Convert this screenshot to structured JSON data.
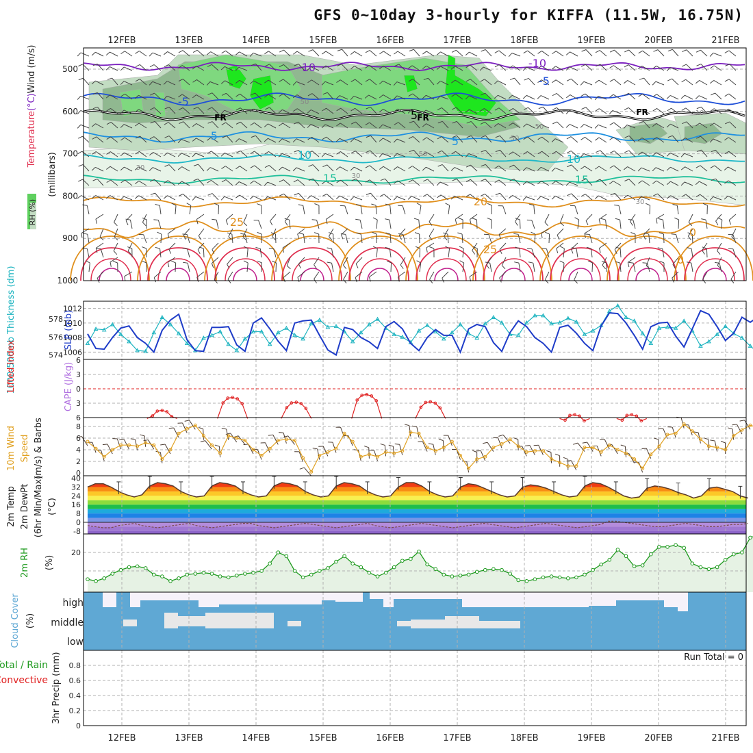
{
  "title": "GFS 0~10day 3-hourly for KIFFA (11.5W, 16.75N)",
  "colors": {
    "rh_light": "#e8f4e8",
    "rh_mid": "#c2dcc2",
    "rh_dark": "#90b890",
    "rh_green": "#7fd87f",
    "rh_bright": "#1ee61e",
    "purple": "#7b1fbf",
    "blue": "#1e4fd8",
    "skyblue": "#1e90e0",
    "cyan": "#1eb8c8",
    "teal": "#1ebf9a",
    "orange": "#e0901e",
    "red": "#e03050",
    "magenta": "#c0208c",
    "slp": "#1e3cc8",
    "thick": "#1eb4c0",
    "li": "#e02020",
    "wind": "#e0a020",
    "rhline": "#1e9a1e",
    "cloud": "#5fa8d4",
    "cloud_clear": "#f6f2fa"
  },
  "chart_data": [
    {
      "panel": "upper-air",
      "type": "heatmap",
      "x_dates": [
        "12FEB",
        "13FEB",
        "14FEB",
        "15FEB",
        "16FEB",
        "17FEB",
        "18FEB",
        "19FEB",
        "20FEB",
        "21FEB"
      ],
      "ylabel_parts": [
        "Temperature",
        "(°C)",
        "Wind",
        "(m/s)"
      ],
      "ylabel_extra": "(millibars)",
      "rh_label": "RH (%)",
      "yticks": [
        "500",
        "600",
        "700",
        "800",
        "900",
        "1000"
      ],
      "ylim": [
        1000,
        450
      ],
      "freezing_label": "FR",
      "contour_labels": [
        "-10",
        "-10",
        "-5",
        "-5",
        "-5",
        "5",
        "5",
        "10",
        "10",
        "15",
        "15",
        "20",
        "25",
        "25",
        "0",
        "0"
      ],
      "rh_labels": [
        "50",
        "50",
        "50",
        "50",
        "30",
        "30",
        "30",
        "10"
      ]
    },
    {
      "panel": "slp-thickness",
      "type": "line",
      "ylabel_left": "1000-500mb Thickness (dm)",
      "ylabel_right": "SLP (mb)",
      "thickness_ticks": [
        "578",
        "576",
        "574"
      ],
      "slp_ticks": [
        "1012",
        "1010",
        "1008",
        "1006"
      ],
      "slp_series": [
        1008.5,
        1006.5,
        1006.4,
        1008.0,
        1009.3,
        1009.6,
        1008.0,
        1007.2,
        1006.0,
        1009.0,
        1010.4,
        1011.2,
        1007.7,
        1006.2,
        1006.1,
        1009.4,
        1009.4,
        1009.5,
        1007.0,
        1006.1,
        1010.0,
        1010.7,
        1009.2,
        1007.5,
        1006.2,
        1010.0,
        1010.3,
        1010.4,
        1008.3,
        1006.3,
        1005.6,
        1009.4,
        1009.1,
        1008.0,
        1007.4,
        1006.5,
        1009.5,
        1010.2,
        1009.2,
        1007.2,
        1006.2,
        1008.0,
        1009.1,
        1008.3,
        1008.3,
        1006.0,
        1009.2,
        1009.8,
        1009.5,
        1007.3,
        1006.1,
        1008.7,
        1010.3,
        1009.5,
        1008.0,
        1007.2,
        1006.0,
        1009.4,
        1009.7,
        1008.6,
        1007.2,
        1006.2,
        1009.6,
        1011.4,
        1011.3,
        1010.0,
        1008.3,
        1006.4,
        1009.5,
        1010.0,
        1010.1,
        1008.2,
        1006.7,
        1009.2,
        1011.7,
        1011.2,
        1009.5,
        1007.6,
        1008.6,
        1010.8,
        1010.1,
        1010.9
      ],
      "thickness_series": [
        575.3,
        576.9,
        576.8,
        577.4,
        576.3,
        575.5,
        574.5,
        574.4,
        576.5,
        578.2,
        577.4,
        576.4,
        575.3,
        574.5,
        575.9,
        576.2,
        576.6,
        575.2,
        574.5,
        575.8,
        576.6,
        576.6,
        575.2,
        576.5,
        577.0,
        576.2,
        575.8,
        577.5,
        577.9,
        577.1,
        577.2,
        576.6,
        575.5,
        576.5,
        577.4,
        578.0,
        577.0,
        576.3,
        576.0,
        575.4,
        576.7,
        577.3,
        576.6,
        575.8,
        576.5,
        577.4,
        576.4,
        575.9,
        577.5,
        578.2,
        577.6,
        576.3,
        576.2,
        577.6,
        578.4,
        578.4,
        577.5,
        577.6,
        578.1,
        577.7,
        576.3,
        576.7,
        577.3,
        578.9,
        579.5,
        578.2,
        577.8,
        576.4,
        575.3,
        577.0,
        577.1,
        577.0,
        577.8,
        576.7,
        575.0,
        575.5,
        576.3,
        577.2,
        576.4,
        575.9,
        575.0,
        574.2
      ],
      "ylim_slp": [
        1005,
        1013
      ]
    },
    {
      "panel": "stability",
      "type": "line",
      "ylabel_left": "Lifted Index",
      "ylabel_right": "CAPE (J/kg)",
      "yticks": [
        "6",
        "3",
        "0",
        "3",
        "6"
      ],
      "li_bumps": [
        {
          "day": 12.6,
          "peak": 4.5
        },
        {
          "day": 13.65,
          "peak": 1.8
        },
        {
          "day": 14.6,
          "peak": 2.8
        },
        {
          "day": 15.65,
          "peak": 1.2
        },
        {
          "day": 16.6,
          "peak": 2.7
        },
        {
          "day": 18.75,
          "peak": 5.4
        },
        {
          "day": 19.6,
          "peak": 5.4
        }
      ]
    },
    {
      "panel": "wind10m",
      "type": "line",
      "ylabel": "10m Wind Speed (m/s) & Barbs",
      "ylabel_parts": [
        "10m Wind",
        "Speed",
        "(m/s) & Barbs"
      ],
      "yticks": [
        "8",
        "6",
        "4",
        "2",
        "0"
      ],
      "ylim": [
        0,
        9
      ],
      "values": [
        5.4,
        4.2,
        2.8,
        4.0,
        4.8,
        4.8,
        4.6,
        5.2,
        4.8,
        2.4,
        4.0,
        6.8,
        7.6,
        8.2,
        6.4,
        4.8,
        3.4,
        6.4,
        6.0,
        5.6,
        4.0,
        3.0,
        4.2,
        5.6,
        5.8,
        5.6,
        2.6,
        0.2,
        3.0,
        3.6,
        4.2,
        6.8,
        5.4,
        2.8,
        3.2,
        2.8,
        3.6,
        3.4,
        3.8,
        7.0,
        6.8,
        4.4,
        3.8,
        4.4,
        5.4,
        3.0,
        0.8,
        2.4,
        2.8,
        4.4,
        5.0,
        5.8,
        4.6,
        3.6,
        3.8,
        3.8,
        2.4,
        1.8,
        1.2,
        1.2,
        4.4,
        4.4,
        3.6,
        4.8,
        4.0,
        3.4,
        2.4,
        0.8,
        3.2,
        4.6,
        6.6,
        6.8,
        8.4,
        7.2,
        5.8,
        4.6,
        4.4,
        4.0,
        6.4,
        7.4,
        8.2,
        7.8
      ]
    },
    {
      "panel": "temperature",
      "type": "area",
      "ylabel_parts": [
        "2m Temp",
        "2m DewPt",
        "(6hr Min/Max)",
        "(°C)"
      ],
      "yticks": [
        "40",
        "32",
        "24",
        "16",
        "8",
        "0",
        "-8"
      ],
      "ylim": [
        -12,
        41
      ],
      "temp_series": [
        32,
        35,
        35,
        32,
        28,
        25,
        23,
        25,
        33,
        36,
        35,
        33,
        28,
        25,
        23,
        24,
        33,
        36,
        35,
        33,
        28,
        25,
        23,
        24,
        33,
        36,
        35,
        33,
        28,
        25,
        23,
        24,
        33,
        36,
        35,
        33,
        28,
        25,
        23,
        24,
        32,
        36,
        36,
        33,
        28,
        25,
        23,
        24,
        32,
        35,
        34,
        31,
        28,
        25,
        23,
        24,
        32,
        34,
        33,
        31,
        28,
        25,
        23,
        24,
        33,
        36,
        35,
        32,
        28,
        24,
        22,
        23,
        31,
        33,
        32,
        30,
        27,
        25,
        22,
        24,
        31,
        32,
        30,
        28,
        24,
        22
      ],
      "dewpoint_series": [
        -3,
        -4,
        -5,
        -5,
        -3,
        -2,
        -1,
        -3,
        -4,
        -5,
        -4,
        -3,
        -2,
        -1,
        -3,
        -4,
        -5,
        -4,
        -3,
        -2,
        -1,
        -1,
        -3,
        -4,
        -5,
        -4,
        -3,
        -2,
        -1,
        -2,
        -3,
        -4,
        -5,
        -4,
        -3,
        -2,
        -1,
        -3,
        -4,
        -5,
        -4,
        -3,
        -2,
        -1,
        -2,
        -3,
        -4,
        -5,
        -4,
        -3,
        -2,
        -1,
        -2,
        -3,
        -4,
        -5,
        -4,
        -3,
        -2,
        -1,
        -2,
        -3,
        -4,
        -5,
        -4,
        -3,
        -2,
        1,
        1,
        0,
        -1,
        -2,
        -3,
        -4,
        -4,
        -3,
        -2,
        -1,
        -2,
        -3,
        -4,
        -4,
        -3,
        -2,
        -2,
        -1
      ]
    },
    {
      "panel": "rh2m",
      "type": "area",
      "ylabel": "2m RH",
      "ylabel_unit": "(%)",
      "yticks": [
        "20"
      ],
      "ylim": [
        0,
        31
      ],
      "values": [
        5.5,
        4.5,
        6.0,
        8.5,
        10.5,
        12.0,
        12.5,
        11.5,
        8.0,
        7.0,
        4.5,
        6.0,
        8.0,
        8.5,
        9.0,
        8.5,
        7.0,
        6.5,
        7.5,
        8.5,
        9.0,
        10.0,
        14.0,
        20.0,
        18.0,
        10.0,
        6.5,
        8.0,
        10.0,
        11.5,
        15.0,
        18.0,
        14.0,
        12.0,
        9.0,
        7.0,
        9.0,
        12.0,
        15.5,
        16.5,
        20.5,
        13.5,
        11.0,
        8.0,
        7.0,
        7.5,
        8.0,
        9.5,
        10.5,
        11.0,
        10.5,
        8.5,
        5.0,
        4.5,
        5.5,
        6.5,
        7.0,
        6.5,
        6.0,
        6.5,
        8.0,
        10.5,
        13.5,
        16.0,
        21.5,
        18.0,
        12.5,
        13.0,
        19.0,
        23.0,
        23.0,
        24.0,
        22.5,
        14.0,
        12.0,
        11.0,
        12.0,
        16.0,
        19.0,
        20.0,
        28.0,
        29.5
      ]
    },
    {
      "panel": "cloud",
      "type": "heatmap",
      "ylabel": "Cloud Cover",
      "ylabel_unit": "(%)",
      "levels": [
        "high",
        "middle",
        "low"
      ]
    },
    {
      "panel": "precip",
      "type": "bar",
      "ylabel_parts": [
        "Total / Rain",
        "Convective",
        "3hr Precip (mm)"
      ],
      "yticks": [
        "0.8",
        "0.6",
        "0.4",
        "0.2",
        "0"
      ],
      "ylim": [
        0,
        0.9
      ],
      "values": [],
      "run_total": "Run Total = 0"
    }
  ]
}
